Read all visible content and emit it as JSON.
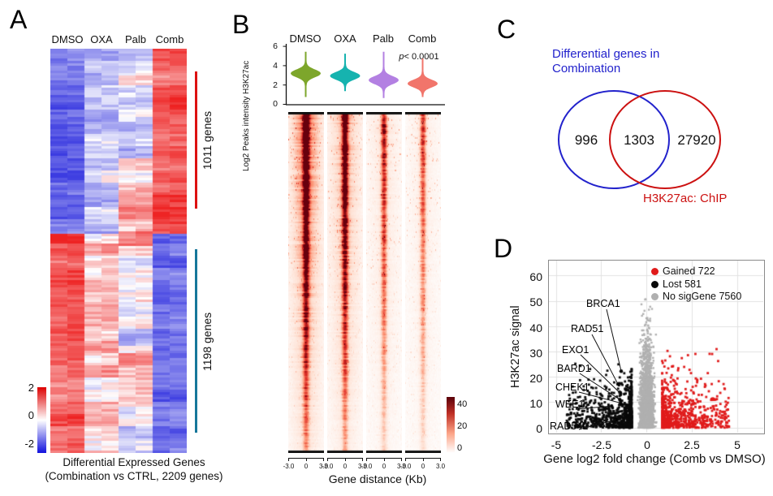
{
  "panel_letters": [
    "A",
    "B",
    "C",
    "D"
  ],
  "chart_data": [
    {
      "id": "A",
      "type": "heatmap",
      "title": "Differential Expressed Genes",
      "subtitle": "(Combination vs CTRL, 2209 genes)",
      "columns": [
        "DMSO",
        "OXA",
        "Palb",
        "Comb"
      ],
      "replicates_per_column": 2,
      "value_range": [
        -2,
        2
      ],
      "colorbar_ticks": [
        "2",
        "0",
        "-2"
      ],
      "colors": {
        "low": "#1111dd",
        "mid": "#ffffff",
        "high": "#ee2222"
      },
      "row_groups": [
        {
          "label": "1011 genes",
          "genes": 1011,
          "direction": "up_in_combination",
          "col_means": [
            -1.45,
            -0.45,
            -0.35,
            1.5
          ],
          "marker_color": "#dd1111"
        },
        {
          "label": "1198 genes",
          "genes": 1198,
          "direction": "down_in_combination",
          "col_means": [
            1.3,
            0.45,
            -0.15,
            -1.4
          ],
          "marker_color": "#16779a"
        }
      ],
      "total_genes": 2209
    },
    {
      "id": "B-violin",
      "type": "violin",
      "ylabel": "Log2 Peaks intensity H3K27ac",
      "yticks": [
        "0",
        "2",
        "4",
        "6"
      ],
      "ylim": [
        0,
        6.4
      ],
      "categories": [
        "DMSO",
        "OXA",
        "Palb",
        "Comb"
      ],
      "pvalue_prefix": "p",
      "pvalue_rest": "< 0.0001",
      "series": [
        {
          "name": "DMSO",
          "color": "#7da62b",
          "median": 3.2,
          "spread": 0.52,
          "min": 0.8,
          "max": 5.4
        },
        {
          "name": "OXA",
          "color": "#16b3af",
          "median": 2.95,
          "spread": 0.5,
          "min": 1.4,
          "max": 5.2
        },
        {
          "name": "Palb",
          "color": "#b380e2",
          "median": 2.5,
          "spread": 0.52,
          "min": 0.7,
          "max": 5.4
        },
        {
          "name": "Comb",
          "color": "#f1756b",
          "median": 2.15,
          "spread": 0.5,
          "min": 0.8,
          "max": 4.7
        }
      ]
    },
    {
      "id": "B-tornado",
      "type": "heatmap",
      "xlabel": "Gene distance (Kb)",
      "xticks": [
        "-3.0",
        "0",
        "3.0"
      ],
      "xlim_kb": [
        -3,
        3
      ],
      "value_range": [
        0,
        40
      ],
      "colorbar_ticks": [
        "40",
        "20",
        "0"
      ],
      "colors": {
        "low": "#ffffff",
        "high": "#67000d"
      },
      "panels": [
        {
          "name": "DMSO",
          "peak_intensity": 1.0,
          "diffuse": 0.8
        },
        {
          "name": "OXA",
          "peak_intensity": 0.88,
          "diffuse": 0.62
        },
        {
          "name": "Palb",
          "peak_intensity": 0.62,
          "diffuse": 0.38
        },
        {
          "name": "Comb",
          "peak_intensity": 0.52,
          "diffuse": 0.3
        }
      ]
    },
    {
      "id": "C",
      "type": "venn",
      "set1": {
        "label_line1": "Differential genes in",
        "label_line2": "Combination",
        "color": "#2222cc",
        "only_count": "996"
      },
      "set2": {
        "label": "H3K27ac: ChIP",
        "color": "#cc1111",
        "only_count": "27920"
      },
      "overlap_count": "1303"
    },
    {
      "id": "D",
      "type": "scatter",
      "xlabel": "Gene log2 fold change (Comb vs DMSO)",
      "ylabel": "H3K27ac signal",
      "xticks": [
        "-5",
        "-2.5",
        "0",
        "2.5",
        "5"
      ],
      "yticks": [
        "0",
        "10",
        "20",
        "30",
        "40",
        "50",
        "60"
      ],
      "xlim": [
        -5.9,
        5.9
      ],
      "ylim": [
        -2,
        66
      ],
      "legend": [
        {
          "label": "Gained 722",
          "color": "#e01b1b",
          "count": 722
        },
        {
          "label": "Lost 581",
          "color": "#0a0a0a",
          "count": 581
        },
        {
          "label": "No sigGene 7560",
          "color": "#b0b0b0",
          "count": 7560
        }
      ],
      "labeled_genes": [
        {
          "name": "BRCA1",
          "x": -1.42,
          "y": 22.4
        },
        {
          "name": "RAD51",
          "x": -1.6,
          "y": 17.3
        },
        {
          "name": "EXO1",
          "x": -1.45,
          "y": 13.5
        },
        {
          "name": "BARD1",
          "x": -1.5,
          "y": 11.2
        },
        {
          "name": "CHEK1",
          "x": -1.45,
          "y": 9.8
        },
        {
          "name": "WEE1",
          "x": -1.95,
          "y": 8.6
        },
        {
          "name": "RAD54L",
          "x": -1.7,
          "y": 3.2
        }
      ]
    }
  ]
}
